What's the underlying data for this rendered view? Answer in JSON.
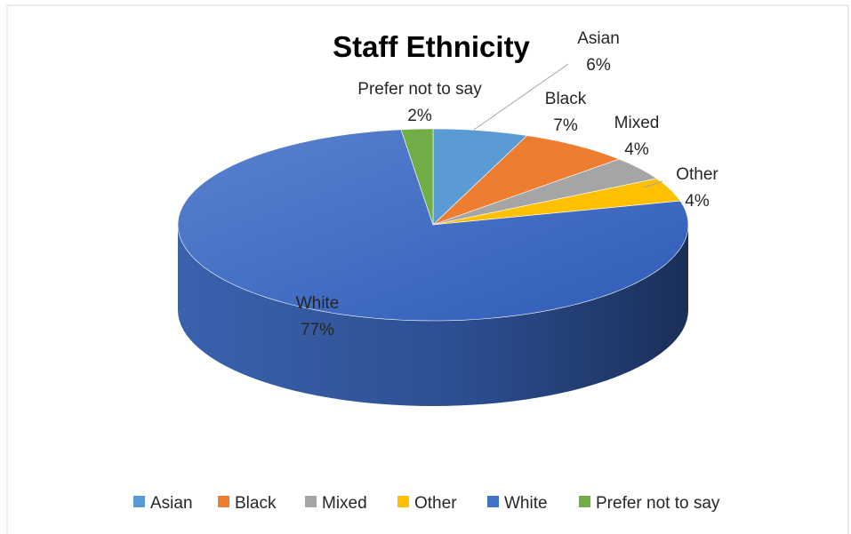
{
  "chart_data": {
    "type": "pie",
    "title": "Staff Ethnicity",
    "slices": [
      {
        "label": "Asian",
        "value": 6,
        "value_label": "6%",
        "color": "#5B9BD5"
      },
      {
        "label": "Black",
        "value": 7,
        "value_label": "7%",
        "color": "#ED7D31"
      },
      {
        "label": "Mixed",
        "value": 4,
        "value_label": "4%",
        "color": "#A5A5A5"
      },
      {
        "label": "Other",
        "value": 4,
        "value_label": "4%",
        "color": "#FFC000"
      },
      {
        "label": "White",
        "value": 77,
        "value_label": "77%",
        "color": "#4472C4"
      },
      {
        "label": "Prefer not to say",
        "value": 2,
        "value_label": "2%",
        "color": "#70AD47"
      }
    ],
    "legend": {
      "position": "bottom",
      "items": [
        "Asian",
        "Black",
        "Mixed",
        "Other",
        "White",
        "Prefer not to say"
      ]
    },
    "style": "3d"
  }
}
